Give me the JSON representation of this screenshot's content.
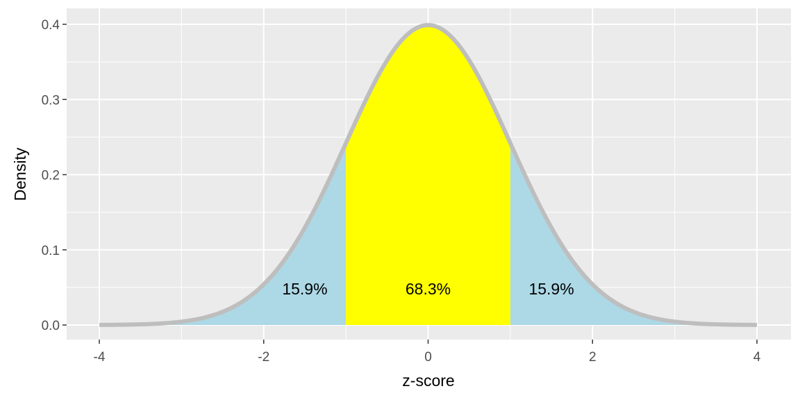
{
  "chart_data": {
    "type": "area",
    "xlabel": "z-score",
    "ylabel": "Density",
    "xlim": [
      -4,
      4
    ],
    "ylim": [
      0,
      0.4
    ],
    "x_ticks": [
      -4,
      -2,
      0,
      2,
      4
    ],
    "x_tick_labels": [
      "-4",
      "-2",
      "0",
      "2",
      "4"
    ],
    "y_ticks": [
      0.0,
      0.1,
      0.2,
      0.3,
      0.4
    ],
    "y_tick_labels": [
      "0.0",
      "0.1",
      "0.2",
      "0.3",
      "0.4"
    ],
    "grid": true,
    "curve": {
      "distribution": "standard normal density",
      "mean": 0,
      "sd": 1,
      "x_range": [
        -4,
        4
      ]
    },
    "regions": [
      {
        "x_range": [
          -4,
          -1
        ],
        "fill": "#add8e6",
        "label": "15.9%"
      },
      {
        "x_range": [
          -1,
          1
        ],
        "fill": "#ffff00",
        "label": "68.3%"
      },
      {
        "x_range": [
          1,
          4
        ],
        "fill": "#add8e6",
        "label": "15.9%"
      }
    ],
    "annotations": [
      {
        "x": -1.5,
        "y": 0.048,
        "text": "15.9%"
      },
      {
        "x": 0,
        "y": 0.048,
        "text": "68.3%"
      },
      {
        "x": 1.5,
        "y": 0.048,
        "text": "15.9%"
      }
    ],
    "colors": {
      "panel_background": "#ebebeb",
      "grid": "#ffffff",
      "curve": "#bebebe",
      "tail_fill": "#add8e6",
      "center_fill": "#ffff00"
    }
  }
}
